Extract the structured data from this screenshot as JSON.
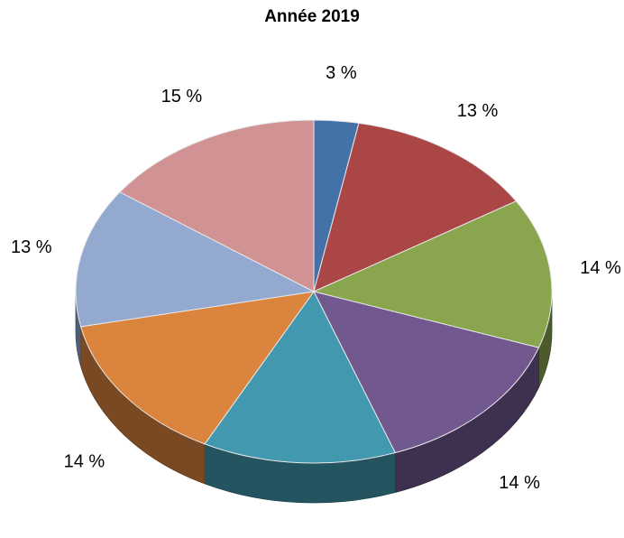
{
  "chart_data": {
    "type": "pie",
    "title": "Année 2019",
    "categories": [
      "",
      "",
      "",
      "",
      "",
      "",
      "",
      ""
    ],
    "values": [
      3,
      13,
      14,
      14,
      13,
      14,
      13,
      15
    ],
    "labels": [
      "3 %",
      "13 %",
      "14 %",
      "14 %",
      "13 %",
      "14 %",
      "13 %",
      "15 %"
    ],
    "colors": [
      "#4472A8",
      "#AA4746",
      "#89A54E",
      "#71588F",
      "#4198AF",
      "#DB843D",
      "#93A9CF",
      "#D09293"
    ],
    "style": "3d-tilted",
    "legend": "none"
  }
}
